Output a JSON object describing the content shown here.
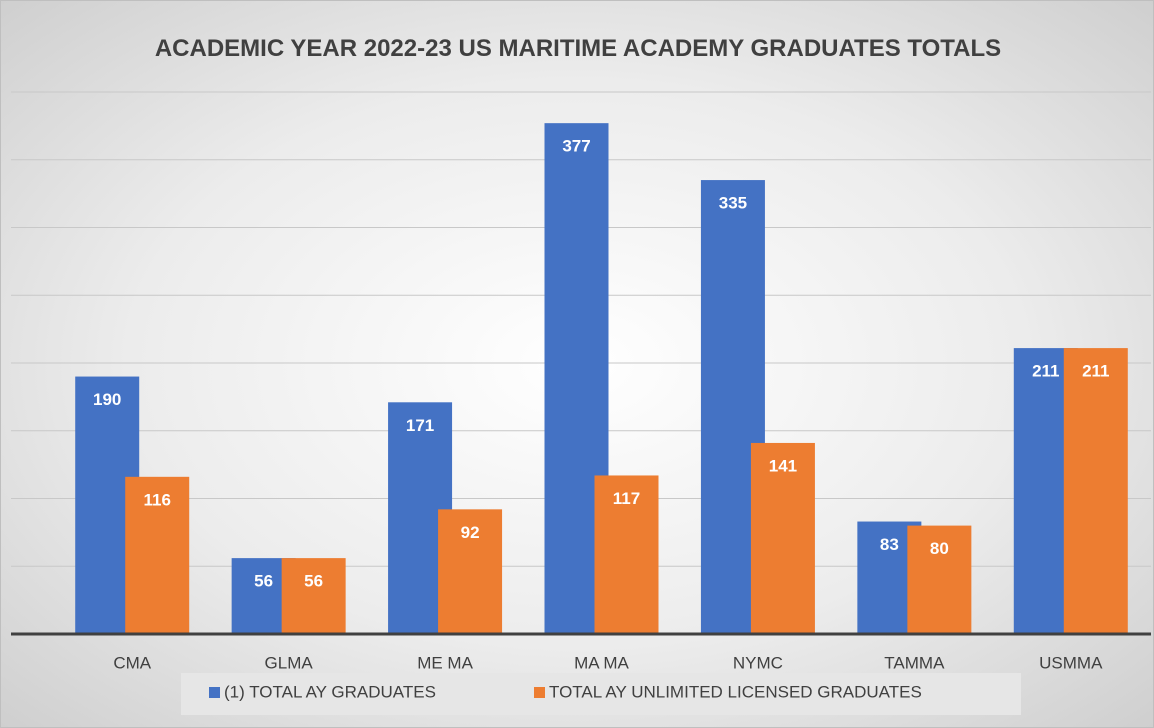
{
  "chart_data": {
    "type": "bar",
    "title": "ACADEMIC YEAR 2022-23 US MARITIME ACADEMY GRADUATES TOTALS",
    "categories": [
      "CMA",
      "GLMA",
      "ME MA",
      "MA MA",
      "NYMC",
      "TAMMA",
      "USMMA"
    ],
    "series": [
      {
        "name": "(1) TOTAL AY GRADUATES",
        "color": "#4472c4",
        "values": [
          190,
          56,
          171,
          377,
          335,
          83,
          211
        ]
      },
      {
        "name": "TOTAL AY UNLIMITED LICENSED GRADUATES",
        "color": "#ed7d31",
        "values": [
          116,
          56,
          92,
          117,
          141,
          80,
          211
        ]
      }
    ],
    "ylim": [
      0,
      400
    ],
    "yticks": [
      0,
      50,
      100,
      150,
      200,
      250,
      300,
      350,
      400
    ],
    "grid": true,
    "legend": "bottom"
  }
}
